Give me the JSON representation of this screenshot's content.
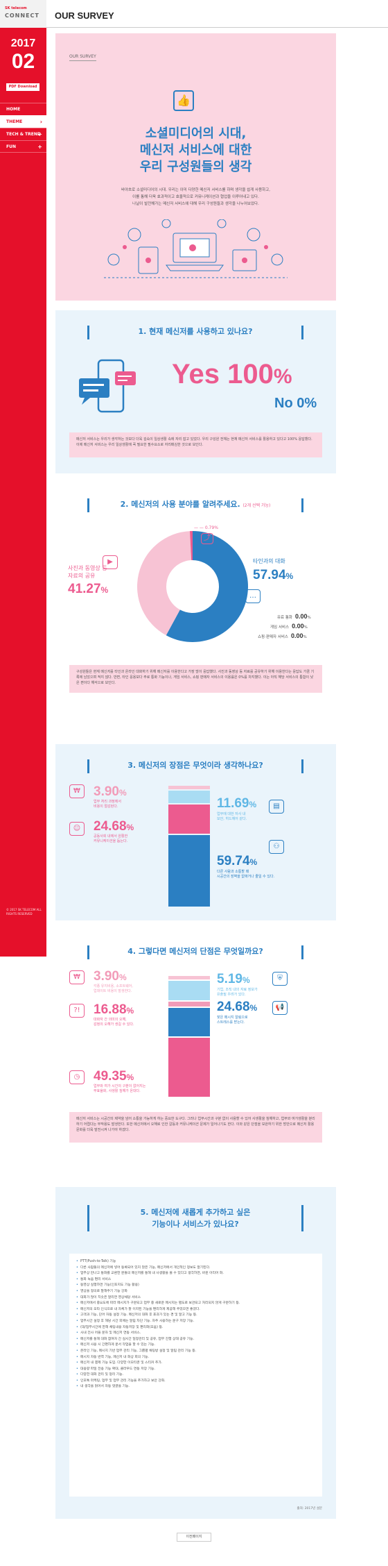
{
  "sidebar": {
    "logo_small": "SK telecom",
    "logo_main": "CONNECT",
    "year": "2017",
    "issue": "02",
    "pdf_label": "PDF Download",
    "nav": [
      {
        "label": "HOME",
        "chevron": ""
      },
      {
        "label": "THEME",
        "chevron": "›"
      },
      {
        "label": "TECH & TREND",
        "chevron": "+"
      },
      {
        "label": "FUN",
        "chevron": "+"
      }
    ],
    "copyright": "© 2017 SK TELECOM ALL RIGHTS RESERVED"
  },
  "topbar": {
    "title": "OUR SURVEY"
  },
  "intro": {
    "label": "OUR SURVEY",
    "title_lines": [
      "소셜미디어의 시대,",
      "메신저 서비스에 대한",
      "우리 구성원들의 생각"
    ],
    "desc_lines": [
      "바야흐로 소셜미디어의 시대. 우리는 이미 다양한 메신저 서비스를 하며 생각을 쉽게 사용하고,",
      "이를 통해 더욱 효과적이고 효율적으로 커뮤니케이션과 협업을 이루어내고 있다.",
      "나날이 발전해가는 메신저 서비스에 대해 우리 구성원들과 생각을 나누어보았다."
    ]
  },
  "q1": {
    "title": "1. 현재 메신저를 사용하고 있나요?",
    "yes_label": "Yes",
    "yes_value": "100",
    "no_label": "No",
    "no_value": "0%",
    "pct": "%",
    "note": "메신저 서비스는 우리가 생각하는 것보다 더욱 깊숙이 일상생활 속에 자리 잡고 있었다. 우리 구성원 전체는 현재 메신저 서비스를 활용하고 있다고 100% 응답했다. 이제 메신저 서비스는 우리 일상생활에 꼭 필요한 필수요소로 자리매김한 것으로 보인다."
  },
  "q2": {
    "title": "2. 메신저의 사용 분야를 알려주세요.",
    "title_sub": "(2개 선택 가능)",
    "other_value": "0.79",
    "chat_label": "타인과의 대화",
    "chat_value": "57.94",
    "share_label_lines": [
      "사진과 동영상 등",
      "자료의 공유"
    ],
    "share_value": "41.27",
    "pct": "%",
    "small_rows": [
      {
        "label": "유료 통화",
        "value": "0.00",
        "pct": "%"
      },
      {
        "label": "게임 서비스",
        "value": "0.00",
        "pct": "%"
      },
      {
        "label": "쇼핑·판매자 서비스",
        "value": "0.00",
        "pct": "%"
      }
    ],
    "note": "구성원들은 현재 메신저를 타인과 온라인 대화하기 위해 메신저를 이용한다고 가장 많이 응답했다. 사진과 동영상 등 자료를 공유하기 위해 이용한다는 응답도 가끔 기록에 남았으며 적지 않다. 반면, 타인 응용보다 주로 통화 기능이나, 게임 서비스, 쇼핑 판매자 서비스의 이용률은 0%를 차지했다. 이는 아직 해당 서비스의 통합이 낮은 편이다 해석으로 보인다."
  },
  "q3": {
    "title": "3. 메신저의 장점은 무엇이라 생각하나요?",
    "pct": "%",
    "items": [
      {
        "value": "3.90",
        "lines": [
          "업무 처리 과정에서",
          "비용이 절감된다."
        ]
      },
      {
        "value": "24.68",
        "lines": [
          "공동사회 내에서 원활한",
          "커뮤니케이션을 돕는다."
        ]
      },
      {
        "value": "11.69",
        "lines": [
          "업무에 대한 자사 내",
          "보안, 히드체어 같다."
        ]
      },
      {
        "value": "59.74",
        "lines": [
          "다른 사람과 소통할 때",
          "시공간의 장벽을 없애거나 줄일 수 있다."
        ]
      }
    ],
    "bar": [
      {
        "series": "3.90",
        "value": 3.9
      },
      {
        "series": "11.69",
        "value": 11.69
      },
      {
        "series": "24.68",
        "value": 24.68
      },
      {
        "series": "59.74",
        "value": 59.74
      }
    ]
  },
  "q4": {
    "title": "4. 그렇다면 메신저의 단점은 무엇일까요?",
    "pct": "%",
    "items": [
      {
        "value": "3.90",
        "lines": [
          "각종 유지비용, 소프트웨어,",
          "업데이트 비용이 발생한다."
        ]
      },
      {
        "value": "16.88",
        "lines": [
          "대화자 간 의미의 오해,",
          "감정의 오해가 생길 수 있다."
        ]
      },
      {
        "value": "5.19",
        "lines": [
          "기업, 조직 내의 자료 정보가",
          "유출될 우려가 있다."
        ]
      },
      {
        "value": "24.68",
        "lines": [
          "잦은 메시지 알림으로",
          "스트레스를 받는다."
        ]
      },
      {
        "value": "49.35",
        "lines": [
          "업무와 여가 시간의 구분이 없어지는",
          "부효율화, 사생활 침해가 온대다."
        ]
      }
    ],
    "note": "메신저 서비스는 시공간의 제약을 넘어 소통을 가능하게 하는 중요한 도구다. 그러나 업무시간과 구분 없이 사용할 수 있어 사생활을 침해하고, 업무와 여가생활을 분리하기 어렵다는 부작용도 발생한다. 또한 메신저에서 오해로 인한 갈등과 커뮤니케이션 문제가 일어나기도 한다. 이와 같은 단점을 보완하기 위한 방안으로 메신저 활용 문화를 더욱 발전시켜 나가야 하겠다."
  },
  "q5": {
    "title_lines": [
      "5. 메신저에 새롭게 추가하고 싶은",
      "기능이나 서비스가 있나요?"
    ],
    "suggestions": [
      "PTT(Push-to-Talk) 기능",
      "다른 사람들의 메신저에 넣어 동록되어 있지 않은 기능, 메신저에서 개인적인 정보도 알기된다.",
      "업무상 만나고 통화를 교환한 분들의 메신저를 통해 내 사생활을 볼 수 있다고 생각하면, 바뀐 아리어 화.",
      "통화 녹음 편리 서비스",
      "동영상 실행하면 기능(인포지도 기능 활용)",
      "영상을 정의로 말해주기 기능 강화",
      "대화가 많이 치솟은 알리면 영상채당 서비스",
      "메신저에서 중요도에 따라 메시지가 구분되고 업무 중 새로운 메시지는 별도로 보관되고 처리되지 않게 구분하기 등.",
      "메신저의 오타 인식으로 내 자체가 잘 이지된 기능을 편리하게 제공해 주었으면 좋겠다.",
      "고객과 기능, 단어 자동 설정 기능. 메신저의 대화 후 효과가 있는 경 및 알고 기능 등.",
      "업무시간 설정 후 해당 시간 외에는 알림 차단 기능. 자주 사용하는 문구 저장 기능.",
      "(대/업무시간에 한해 채팅내용 자동저장 및 편리화(모음) 등.",
      "사내 전사 어플 문자 및 메신저 연동 서비스.",
      "메신저를 통해 대화 참여자 간 실시간 일정관리 및 공유, 업무 진행 상태 공유 기능.",
      "메신저 사용 시 간편하게 문서 작업을 할 수 있는 기능.",
      "온라인 기능, 메시지 기반 업무 관리 기능, 그룹별 채팅방 설정 및 알림 관리 기능 등.",
      "메시지 자동 번역 기능, 메신저 내 화상 회의 기능.",
      "메신저 내 결제 기능 도입. 다양한 이모티콘 및 스티커 추가.",
      "대용량 파일 전송 기능 확대, 클라우드 연동 저장 기능.",
      "다양한 대화 관리 및 정리 기능.",
      "인포톡 마케팅, 업무 및 업무 관리 기능을 추가하고 보안 강화.",
      "내 생각을 읽어서 자동 댓글을 기능."
    ],
    "source": "출처: 2017년 설문"
  },
  "footer": {
    "prev_label": "이전페이지"
  },
  "colors": {
    "brand_red": "#e5102a",
    "accent_blue": "#2b7fc2",
    "accent_pink": "#ec5b8f",
    "pale_pink": "#fbd6e1",
    "pale_blue": "#eaf4fb"
  }
}
